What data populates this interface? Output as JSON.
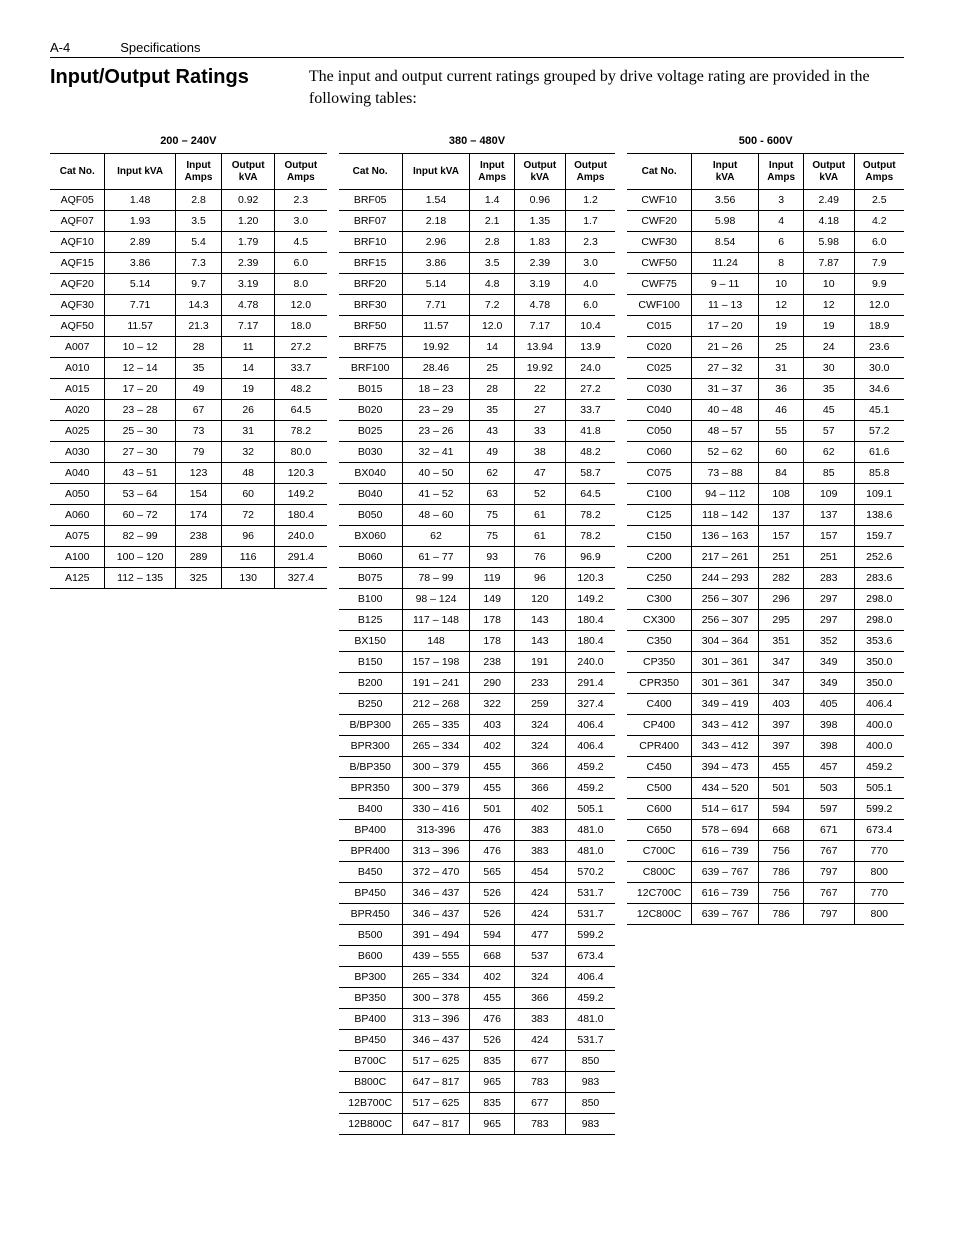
{
  "header": {
    "page_num": "A-4",
    "section": "Specifications"
  },
  "title": "Input/Output Ratings",
  "intro": "The input and output current ratings grouped by drive voltage rating are provided in the following tables:",
  "groups": [
    {
      "title": "200 – 240V",
      "columns": [
        "Cat No.",
        "Input kVA",
        "Input\nAmps",
        "Output\nkVA",
        "Output\nAmps"
      ],
      "rows": [
        [
          "AQF05",
          "1.48",
          "2.8",
          "0.92",
          "2.3"
        ],
        [
          "AQF07",
          "1.93",
          "3.5",
          "1.20",
          "3.0"
        ],
        [
          "AQF10",
          "2.89",
          "5.4",
          "1.79",
          "4.5"
        ],
        [
          "AQF15",
          "3.86",
          "7.3",
          "2.39",
          "6.0"
        ],
        [
          "AQF20",
          "5.14",
          "9.7",
          "3.19",
          "8.0"
        ],
        [
          "AQF30",
          "7.71",
          "14.3",
          "4.78",
          "12.0"
        ],
        [
          "AQF50",
          "11.57",
          "21.3",
          "7.17",
          "18.0"
        ],
        [
          "A007",
          "10 – 12",
          "28",
          "11",
          "27.2"
        ],
        [
          "A010",
          "12 – 14",
          "35",
          "14",
          "33.7"
        ],
        [
          "A015",
          "17 – 20",
          "49",
          "19",
          "48.2"
        ],
        [
          "A020",
          "23 – 28",
          "67",
          "26",
          "64.5"
        ],
        [
          "A025",
          "25 – 30",
          "73",
          "31",
          "78.2"
        ],
        [
          "A030",
          "27 – 30",
          "79",
          "32",
          "80.0"
        ],
        [
          "A040",
          "43 – 51",
          "123",
          "48",
          "120.3"
        ],
        [
          "A050",
          "53 – 64",
          "154",
          "60",
          "149.2"
        ],
        [
          "A060",
          "60 – 72",
          "174",
          "72",
          "180.4"
        ],
        [
          "A075",
          "82 – 99",
          "238",
          "96",
          "240.0"
        ],
        [
          "A100",
          "100 – 120",
          "289",
          "116",
          "291.4"
        ],
        [
          "A125",
          "112 – 135",
          "325",
          "130",
          "327.4"
        ]
      ]
    },
    {
      "title": "380 – 480V",
      "columns": [
        "Cat No.",
        "Input kVA",
        "Input\nAmps",
        "Output\nkVA",
        "Output\nAmps"
      ],
      "rows": [
        [
          "BRF05",
          "1.54",
          "1.4",
          "0.96",
          "1.2"
        ],
        [
          "BRF07",
          "2.18",
          "2.1",
          "1.35",
          "1.7"
        ],
        [
          "BRF10",
          "2.96",
          "2.8",
          "1.83",
          "2.3"
        ],
        [
          "BRF15",
          "3.86",
          "3.5",
          "2.39",
          "3.0"
        ],
        [
          "BRF20",
          "5.14",
          "4.8",
          "3.19",
          "4.0"
        ],
        [
          "BRF30",
          "7.71",
          "7.2",
          "4.78",
          "6.0"
        ],
        [
          "BRF50",
          "11.57",
          "12.0",
          "7.17",
          "10.4"
        ],
        [
          "BRF75",
          "19.92",
          "14",
          "13.94",
          "13.9"
        ],
        [
          "BRF100",
          "28.46",
          "25",
          "19.92",
          "24.0"
        ],
        [
          "B015",
          "18 – 23",
          "28",
          "22",
          "27.2"
        ],
        [
          "B020",
          "23 – 29",
          "35",
          "27",
          "33.7"
        ],
        [
          "B025",
          "23 – 26",
          "43",
          "33",
          "41.8"
        ],
        [
          "B030",
          "32 – 41",
          "49",
          "38",
          "48.2"
        ],
        [
          "BX040",
          "40 – 50",
          "62",
          "47",
          "58.7"
        ],
        [
          "B040",
          "41 – 52",
          "63",
          "52",
          "64.5"
        ],
        [
          "B050",
          "48 – 60",
          "75",
          "61",
          "78.2"
        ],
        [
          "BX060",
          "62",
          "75",
          "61",
          "78.2"
        ],
        [
          "B060",
          "61 – 77",
          "93",
          "76",
          "96.9"
        ],
        [
          "B075",
          "78 – 99",
          "119",
          "96",
          "120.3"
        ],
        [
          "B100",
          "98 – 124",
          "149",
          "120",
          "149.2"
        ],
        [
          "B125",
          "117 – 148",
          "178",
          "143",
          "180.4"
        ],
        [
          "BX150",
          "148",
          "178",
          "143",
          "180.4"
        ],
        [
          "B150",
          "157 – 198",
          "238",
          "191",
          "240.0"
        ],
        [
          "B200",
          "191 – 241",
          "290",
          "233",
          "291.4"
        ],
        [
          "B250",
          "212 – 268",
          "322",
          "259",
          "327.4"
        ],
        [
          "B/BP300",
          "265 – 335",
          "403",
          "324",
          "406.4"
        ],
        [
          "BPR300",
          "265 – 334",
          "402",
          "324",
          "406.4"
        ],
        [
          "B/BP350",
          "300 – 379",
          "455",
          "366",
          "459.2"
        ],
        [
          "BPR350",
          "300 – 379",
          "455",
          "366",
          "459.2"
        ],
        [
          "B400",
          "330 – 416",
          "501",
          "402",
          "505.1"
        ],
        [
          "BP400",
          "313-396",
          "476",
          "383",
          "481.0"
        ],
        [
          "BPR400",
          "313 – 396",
          "476",
          "383",
          "481.0"
        ],
        [
          "B450",
          "372 – 470",
          "565",
          "454",
          "570.2"
        ],
        [
          "BP450",
          "346 – 437",
          "526",
          "424",
          "531.7"
        ],
        [
          "BPR450",
          "346 – 437",
          "526",
          "424",
          "531.7"
        ],
        [
          "B500",
          "391 – 494",
          "594",
          "477",
          "599.2"
        ],
        [
          "B600",
          "439 – 555",
          "668",
          "537",
          "673.4"
        ],
        [
          "BP300",
          "265 – 334",
          "402",
          "324",
          "406.4"
        ],
        [
          "BP350",
          "300 – 378",
          "455",
          "366",
          "459.2"
        ],
        [
          "BP400",
          "313 – 396",
          "476",
          "383",
          "481.0"
        ],
        [
          "BP450",
          "346 – 437",
          "526",
          "424",
          "531.7"
        ],
        [
          "B700C",
          "517 – 625",
          "835",
          "677",
          "850"
        ],
        [
          "B800C",
          "647 – 817",
          "965",
          "783",
          "983"
        ],
        [
          "12B700C",
          "517 – 625",
          "835",
          "677",
          "850"
        ],
        [
          "12B800C",
          "647 – 817",
          "965",
          "783",
          "983"
        ]
      ]
    },
    {
      "title": "500 - 600V",
      "columns": [
        "Cat No.",
        "Input\nkVA",
        "Input\nAmps",
        "Output\nkVA",
        "Output\nAmps"
      ],
      "rows": [
        [
          "CWF10",
          "3.56",
          "3",
          "2.49",
          "2.5"
        ],
        [
          "CWF20",
          "5.98",
          "4",
          "4.18",
          "4.2"
        ],
        [
          "CWF30",
          "8.54",
          "6",
          "5.98",
          "6.0"
        ],
        [
          "CWF50",
          "11.24",
          "8",
          "7.87",
          "7.9"
        ],
        [
          "CWF75",
          "9 – 11",
          "10",
          "10",
          "9.9"
        ],
        [
          "CWF100",
          "11 – 13",
          "12",
          "12",
          "12.0"
        ],
        [
          "C015",
          "17 – 20",
          "19",
          "19",
          "18.9"
        ],
        [
          "C020",
          "21 – 26",
          "25",
          "24",
          "23.6"
        ],
        [
          "C025",
          "27 – 32",
          "31",
          "30",
          "30.0"
        ],
        [
          "C030",
          "31 – 37",
          "36",
          "35",
          "34.6"
        ],
        [
          "C040",
          "40 – 48",
          "46",
          "45",
          "45.1"
        ],
        [
          "C050",
          "48 – 57",
          "55",
          "57",
          "57.2"
        ],
        [
          "C060",
          "52 – 62",
          "60",
          "62",
          "61.6"
        ],
        [
          "C075",
          "73 – 88",
          "84",
          "85",
          "85.8"
        ],
        [
          "C100",
          "94 – 112",
          "108",
          "109",
          "109.1"
        ],
        [
          "C125",
          "118 – 142",
          "137",
          "137",
          "138.6"
        ],
        [
          "C150",
          "136 – 163",
          "157",
          "157",
          "159.7"
        ],
        [
          "C200",
          "217 – 261",
          "251",
          "251",
          "252.6"
        ],
        [
          "C250",
          "244 – 293",
          "282",
          "283",
          "283.6"
        ],
        [
          "C300",
          "256 – 307",
          "296",
          "297",
          "298.0"
        ],
        [
          "CX300",
          "256 – 307",
          "295",
          "297",
          "298.0"
        ],
        [
          "C350",
          "304 – 364",
          "351",
          "352",
          "353.6"
        ],
        [
          "CP350",
          "301 – 361",
          "347",
          "349",
          "350.0"
        ],
        [
          "CPR350",
          "301 – 361",
          "347",
          "349",
          "350.0"
        ],
        [
          "C400",
          "349 – 419",
          "403",
          "405",
          "406.4"
        ],
        [
          "CP400",
          "343 – 412",
          "397",
          "398",
          "400.0"
        ],
        [
          "CPR400",
          "343 – 412",
          "397",
          "398",
          "400.0"
        ],
        [
          "C450",
          "394 – 473",
          "455",
          "457",
          "459.2"
        ],
        [
          "C500",
          "434 – 520",
          "501",
          "503",
          "505.1"
        ],
        [
          "C600",
          "514 – 617",
          "594",
          "597",
          "599.2"
        ],
        [
          "C650",
          "578 – 694",
          "668",
          "671",
          "673.4"
        ],
        [
          "C700C",
          "616 – 739",
          "756",
          "767",
          "770"
        ],
        [
          "C800C",
          "639 – 767",
          "786",
          "797",
          "800"
        ],
        [
          "12C700C",
          "616 – 739",
          "756",
          "767",
          "770"
        ],
        [
          "12C800C",
          "639 – 767",
          "786",
          "797",
          "800"
        ]
      ]
    }
  ]
}
